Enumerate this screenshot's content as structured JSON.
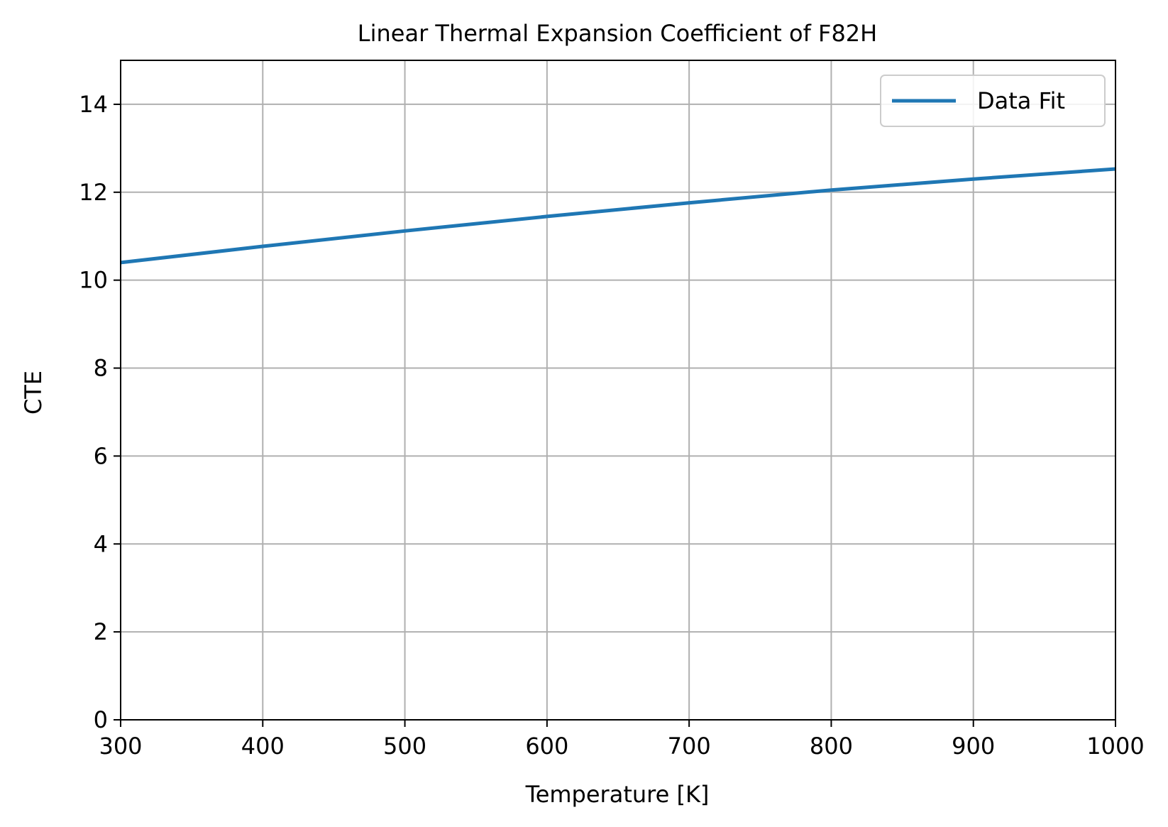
{
  "chart_data": {
    "type": "line",
    "title": "Linear Thermal Expansion Coefficient of F82H",
    "xlabel": "Temperature [K]",
    "ylabel": "CTE",
    "xlim": [
      300,
      1000
    ],
    "ylim": [
      0,
      15
    ],
    "xticks": [
      "300",
      "400",
      "500",
      "600",
      "700",
      "800",
      "900",
      "1000"
    ],
    "yticks": [
      "0",
      "2",
      "4",
      "6",
      "8",
      "10",
      "12",
      "14"
    ],
    "grid": true,
    "legend": "top-right",
    "series": [
      {
        "name": "Data Fit",
        "color": "#1f77b4",
        "x": [
          300,
          400,
          500,
          600,
          700,
          800,
          900,
          1000
        ],
        "y": [
          10.4,
          10.77,
          11.12,
          11.45,
          11.76,
          12.05,
          12.3,
          12.53
        ]
      }
    ]
  }
}
